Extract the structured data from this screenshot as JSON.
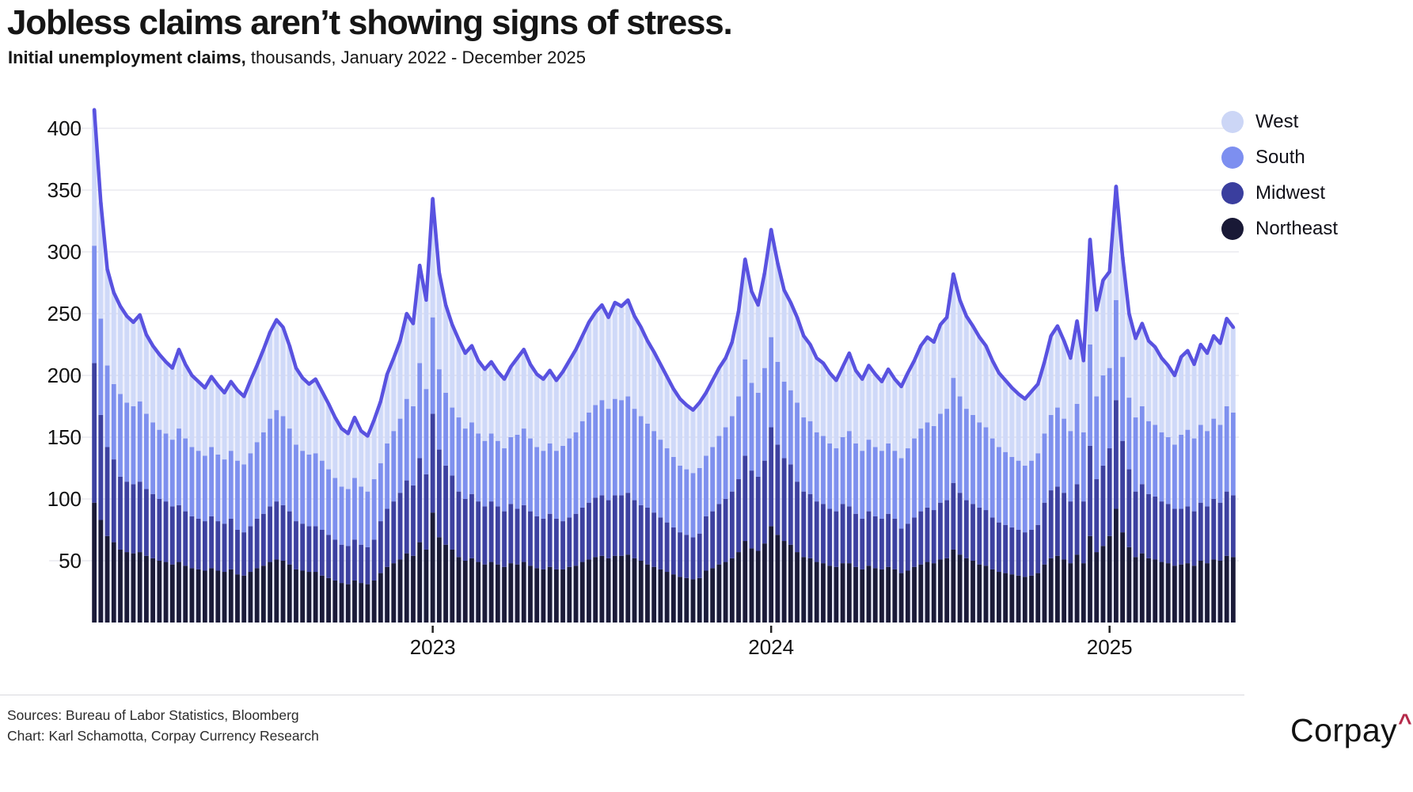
{
  "header": {
    "title": "Jobless claims aren’t showing signs of stress.",
    "subtitle_bold": "Initial unemployment claims,",
    "subtitle_rest": " thousands, January 2022 - December 2025"
  },
  "legend": {
    "items": [
      {
        "label": "West",
        "color": "#ccd6f6"
      },
      {
        "label": "South",
        "color": "#7d8ff0"
      },
      {
        "label": "Midwest",
        "color": "#3a3e9e"
      },
      {
        "label": "Northeast",
        "color": "#191936"
      }
    ]
  },
  "footer": {
    "sources_line": "Sources: Bureau of Labor Statistics, Bloomberg",
    "chart_line": "Chart: Karl Schamotta, Corpay Currency Research",
    "logo_text": "Corpay",
    "logo_caret": "^",
    "logo_caret_color": "#b52a4a"
  },
  "chart_data": {
    "type": "bar",
    "variant": "weekly stacked bars with total line overlay",
    "title": "Jobless claims aren’t showing signs of stress.",
    "subtitle": "Initial unemployment claims, thousands, January 2022 - December 2025",
    "xlabel": "",
    "ylabel": "",
    "ylim": [
      0,
      420
    ],
    "y_ticks": [
      50,
      100,
      150,
      200,
      250,
      300,
      350,
      400
    ],
    "x_ticks": [
      {
        "label": "2023",
        "week_index": 52
      },
      {
        "label": "2024",
        "week_index": 104
      },
      {
        "label": "2025",
        "week_index": 156
      }
    ],
    "grid": "horizontal",
    "legend_position": "top-right",
    "line_color": "#5952e0",
    "area_fill": "#8d97ec",
    "area_fill_opacity": 0.15,
    "gridline_color": "#eaeaef",
    "line_series_name": "Total (sum of regions)",
    "x_start_label": "Jan 2022",
    "weeks_count": 176,
    "series": [
      {
        "name": "Northeast",
        "color": "#1b1b38",
        "values": [
          97,
          83,
          70,
          65,
          59,
          57,
          56,
          57,
          54,
          52,
          50,
          49,
          47,
          49,
          46,
          44,
          43,
          42,
          44,
          42,
          41,
          43,
          39,
          38,
          41,
          44,
          46,
          49,
          51,
          50,
          47,
          43,
          42,
          41,
          41,
          38,
          36,
          34,
          32,
          31,
          34,
          32,
          31,
          34,
          40,
          45,
          48,
          51,
          56,
          54,
          65,
          59,
          89,
          69,
          63,
          59,
          53,
          50,
          52,
          49,
          47,
          49,
          47,
          45,
          48,
          47,
          49,
          46,
          44,
          43,
          45,
          43,
          43,
          45,
          46,
          49,
          51,
          53,
          54,
          52,
          54,
          54,
          55,
          52,
          50,
          47,
          45,
          43,
          41,
          39,
          37,
          36,
          35,
          36,
          42,
          44,
          47,
          49,
          52,
          57,
          66,
          60,
          58,
          64,
          78,
          71,
          66,
          63,
          57,
          53,
          52,
          49,
          48,
          46,
          45,
          48,
          48,
          45,
          43,
          46,
          44,
          43,
          45,
          43,
          40,
          42,
          45,
          47,
          49,
          48,
          51,
          52,
          59,
          55,
          52,
          50,
          47,
          46,
          43,
          41,
          40,
          39,
          38,
          37,
          38,
          40,
          47,
          52,
          54,
          51,
          48,
          55,
          48,
          70,
          57,
          62,
          70,
          92,
          73,
          61,
          53,
          56,
          52,
          51,
          49,
          48,
          46,
          47,
          48,
          46,
          50,
          48,
          51,
          50,
          54,
          53
        ]
      },
      {
        "name": "Midwest",
        "color": "#3d41a0",
        "values": [
          113,
          85,
          72,
          67,
          59,
          57,
          56,
          57,
          54,
          52,
          50,
          49,
          47,
          46,
          44,
          42,
          41,
          40,
          42,
          40,
          39,
          41,
          36,
          35,
          37,
          40,
          42,
          45,
          47,
          45,
          43,
          39,
          38,
          37,
          37,
          37,
          35,
          33,
          31,
          31,
          33,
          31,
          30,
          33,
          42,
          47,
          50,
          54,
          59,
          57,
          68,
          61,
          80,
          71,
          64,
          60,
          53,
          50,
          52,
          49,
          47,
          49,
          47,
          45,
          48,
          45,
          46,
          44,
          42,
          41,
          43,
          41,
          39,
          40,
          42,
          44,
          46,
          48,
          49,
          47,
          49,
          49,
          50,
          47,
          45,
          46,
          44,
          42,
          40,
          38,
          36,
          35,
          34,
          36,
          44,
          46,
          49,
          51,
          54,
          59,
          69,
          63,
          60,
          67,
          80,
          73,
          67,
          65,
          57,
          53,
          52,
          49,
          48,
          46,
          45,
          48,
          46,
          43,
          41,
          44,
          42,
          41,
          43,
          41,
          36,
          38,
          40,
          43,
          44,
          43,
          46,
          47,
          54,
          50,
          47,
          46,
          46,
          45,
          42,
          40,
          39,
          38,
          37,
          36,
          37,
          39,
          50,
          55,
          56,
          54,
          50,
          57,
          50,
          73,
          59,
          65,
          71,
          88,
          74,
          63,
          53,
          56,
          52,
          51,
          49,
          48,
          46,
          45,
          46,
          44,
          47,
          46,
          49,
          47,
          52,
          50
        ]
      },
      {
        "name": "South",
        "color": "#7e90ee",
        "values": [
          95,
          78,
          66,
          61,
          67,
          64,
          63,
          65,
          61,
          58,
          56,
          55,
          54,
          62,
          59,
          56,
          55,
          53,
          56,
          54,
          52,
          55,
          56,
          55,
          59,
          62,
          66,
          71,
          74,
          72,
          67,
          62,
          59,
          58,
          59,
          56,
          53,
          50,
          47,
          46,
          50,
          47,
          45,
          49,
          47,
          53,
          57,
          60,
          66,
          64,
          77,
          69,
          78,
          65,
          59,
          55,
          60,
          57,
          58,
          55,
          53,
          55,
          53,
          51,
          54,
          60,
          62,
          59,
          56,
          55,
          57,
          55,
          61,
          64,
          66,
          70,
          73,
          75,
          77,
          74,
          78,
          77,
          78,
          74,
          72,
          68,
          66,
          63,
          60,
          57,
          54,
          53,
          52,
          53,
          49,
          52,
          55,
          58,
          61,
          67,
          78,
          71,
          68,
          75,
          73,
          67,
          62,
          60,
          64,
          60,
          59,
          56,
          55,
          53,
          51,
          54,
          61,
          57,
          55,
          58,
          56,
          55,
          57,
          55,
          57,
          61,
          64,
          67,
          69,
          68,
          72,
          74,
          85,
          78,
          74,
          72,
          69,
          67,
          64,
          61,
          59,
          57,
          56,
          54,
          56,
          58,
          56,
          61,
          64,
          60,
          57,
          65,
          56,
          82,
          67,
          73,
          65,
          81,
          68,
          58,
          60,
          63,
          59,
          58,
          56,
          54,
          52,
          60,
          62,
          59,
          63,
          61,
          65,
          63,
          69,
          67
        ]
      },
      {
        "name": "West",
        "color": "#cfd9f8",
        "values": [
          110,
          94,
          78,
          74,
          71,
          70,
          68,
          70,
          64,
          62,
          61,
          58,
          58,
          64,
          60,
          58,
          56,
          55,
          57,
          56,
          54,
          56,
          57,
          55,
          59,
          62,
          67,
          70,
          73,
          72,
          67,
          62,
          59,
          57,
          60,
          56,
          53,
          49,
          47,
          45,
          49,
          45,
          45,
          48,
          50,
          56,
          59,
          63,
          69,
          67,
          79,
          72,
          96,
          78,
          71,
          67,
          63,
          61,
          62,
          59,
          58,
          58,
          56,
          56,
          57,
          62,
          64,
          60,
          59,
          58,
          59,
          57,
          60,
          63,
          67,
          69,
          73,
          75,
          77,
          74,
          78,
          76,
          78,
          75,
          72,
          67,
          64,
          61,
          58,
          55,
          54,
          52,
          51,
          53,
          51,
          54,
          55,
          56,
          60,
          69,
          81,
          74,
          71,
          77,
          87,
          80,
          74,
          71,
          69,
          66,
          62,
          60,
          59,
          57,
          55,
          57,
          63,
          59,
          58,
          60,
          59,
          56,
          60,
          58,
          58,
          61,
          63,
          67,
          69,
          68,
          72,
          74,
          84,
          78,
          75,
          72,
          69,
          66,
          63,
          60,
          58,
          56,
          54,
          54,
          56,
          56,
          58,
          64,
          66,
          63,
          59,
          67,
          58,
          85,
          70,
          77,
          78,
          92,
          81,
          68,
          64,
          67,
          65,
          63,
          60,
          58,
          56,
          63,
          64,
          60,
          65,
          63,
          67,
          66,
          71,
          69
        ]
      }
    ]
  }
}
